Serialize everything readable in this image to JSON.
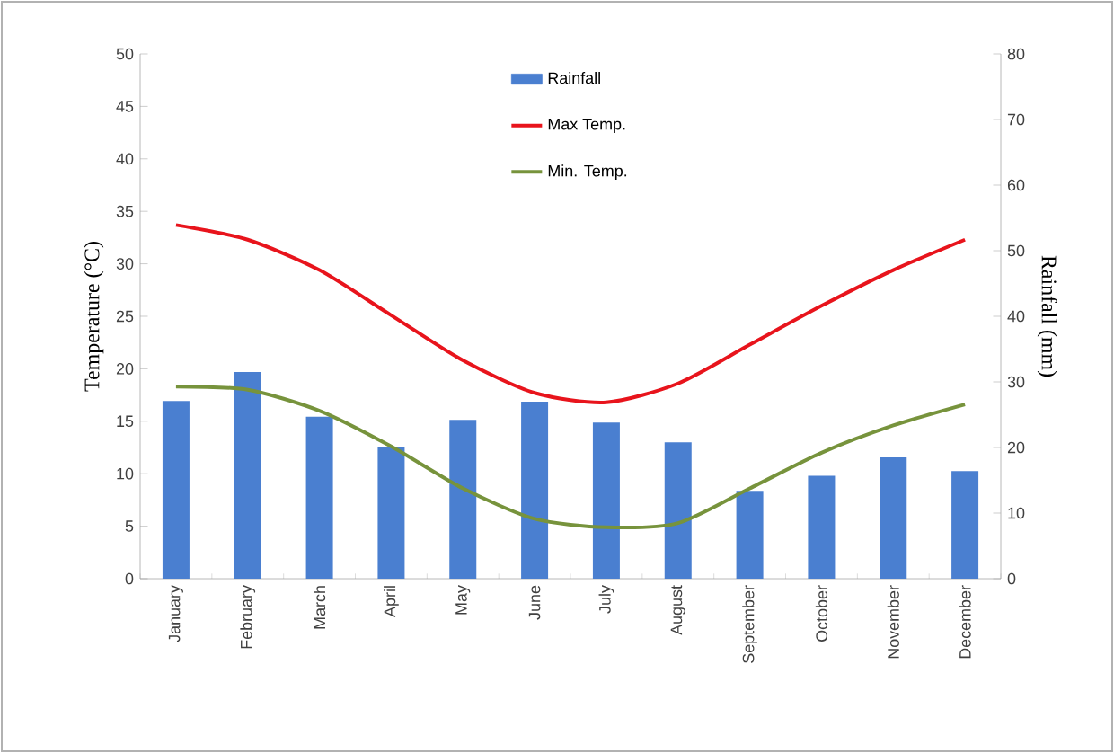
{
  "chart_data": {
    "type": "bar",
    "categories": [
      "January",
      "February",
      "March",
      "April",
      "May",
      "June",
      "July",
      "August",
      "September",
      "October",
      "November",
      "December"
    ],
    "series": [
      {
        "name": "Rainfall",
        "axis": "y2",
        "color": "#4a7fd0",
        "values": [
          27.1,
          31.5,
          24.7,
          20.1,
          24.2,
          27.0,
          23.8,
          20.8,
          13.4,
          15.7,
          18.5,
          16.4
        ]
      },
      {
        "name": "Max Temp.",
        "type": "line",
        "color": "#e8141c",
        "values": [
          33.7,
          32.3,
          29.4,
          25.1,
          20.8,
          17.7,
          16.8,
          18.6,
          22.3,
          26.0,
          29.4,
          32.3
        ]
      },
      {
        "name": "Min. Temp.",
        "type": "line",
        "color": "#77933c",
        "values": [
          18.3,
          18.0,
          16.0,
          12.6,
          8.6,
          5.7,
          4.9,
          5.3,
          8.6,
          12.0,
          14.6,
          16.6
        ]
      }
    ],
    "ylabel": "Temperature (°C)",
    "y2label": "Rainfall (mm)",
    "ylim": [
      0,
      50
    ],
    "yticks": [
      0,
      5,
      10,
      15,
      20,
      25,
      30,
      35,
      40,
      45,
      50
    ],
    "y2lim": [
      0,
      80
    ],
    "y2ticks": [
      0,
      10,
      20,
      30,
      40,
      50,
      60,
      70,
      80
    ],
    "legend": "top",
    "marker": "none",
    "line_style": "solid",
    "grid": false
  }
}
